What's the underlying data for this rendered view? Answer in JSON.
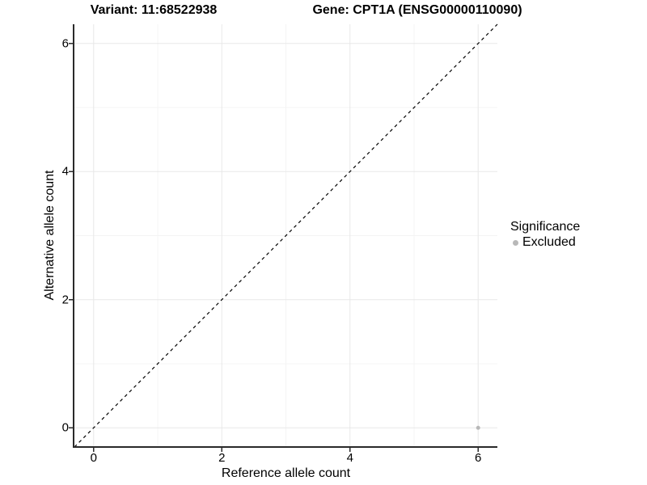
{
  "figure": {
    "background": "#ffffff",
    "axis_line_color": "#2a2a2a",
    "grid_major_color": "#e8e8e8",
    "grid_minor_color": "#f4f4f4",
    "tick_color": "#2a2a2a",
    "text_color": "#000000"
  },
  "chart_data": {
    "type": "scatter",
    "titles": {
      "left": "Variant: 11:68522938",
      "right": "Gene: CPT1A (ENSG00000110090)"
    },
    "xlabel": "Reference allele count",
    "ylabel": "Alternative allele count",
    "xlim": [
      -0.3,
      6.3
    ],
    "ylim": [
      -0.3,
      6.3
    ],
    "x_ticks": [
      0,
      2,
      4,
      6
    ],
    "y_ticks": [
      0,
      2,
      4,
      6
    ],
    "grid_minor_at": [
      1,
      3,
      5
    ],
    "grid": "on",
    "identity_line": {
      "style": "dashed",
      "color": "#000000",
      "from": [
        -0.3,
        -0.3
      ],
      "to": [
        6.3,
        6.3
      ]
    },
    "legend": {
      "title": "Significance",
      "position": "right",
      "items": [
        {
          "label": "Excluded",
          "color": "#b8b8b8"
        }
      ]
    },
    "series": [
      {
        "name": "Excluded",
        "color": "#b8b8b8",
        "point_radius": 2.5,
        "points": [
          {
            "x": 6,
            "y": 0
          }
        ]
      }
    ]
  }
}
